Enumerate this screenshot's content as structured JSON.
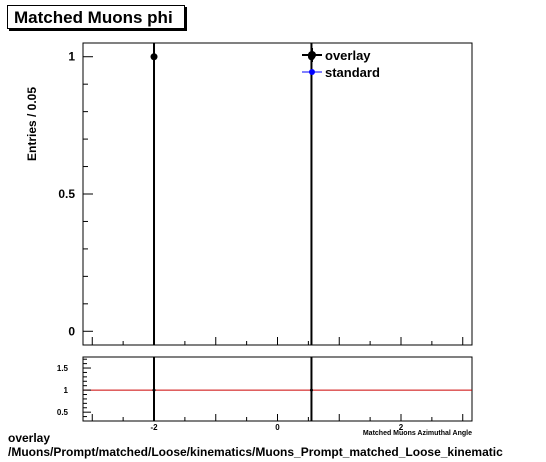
{
  "title": "Matched Muons phi",
  "footer": {
    "line1": "overlay",
    "line2": "/Muons/Prompt/matched/Loose/kinematics/Muons_Prompt_matched_Loose_kinematic"
  },
  "colors": {
    "overlay": "#000000",
    "standard": "#0000ff",
    "ratio_line": "#cc0000",
    "frame": "#000000"
  },
  "chart_data": [
    {
      "type": "scatter",
      "panel": "main",
      "title": "Matched Muons phi",
      "ylabel": "Entries / 0.05",
      "xlim": [
        -3.15,
        3.15
      ],
      "ylim": [
        -0.05,
        1.05
      ],
      "ytick_labels": [
        {
          "value": 0,
          "label": "0"
        },
        {
          "value": 0.5,
          "label": "0.5"
        },
        {
          "value": 1,
          "label": "1"
        }
      ],
      "grid": false,
      "legend_position": "top-right",
      "legend": [
        {
          "name": "overlay",
          "color": "#000000",
          "marker": "filled-circle"
        },
        {
          "name": "standard",
          "color": "#0000ff",
          "marker": "filled-circle"
        }
      ],
      "series": [
        {
          "name": "overlay",
          "points": [
            {
              "x": -2.0,
              "y": 1
            },
            {
              "x": 0.55,
              "y": 1
            }
          ]
        }
      ]
    },
    {
      "type": "line",
      "panel": "ratio",
      "xlabel": "Matched Muons Azimuthal Angle",
      "xlim": [
        -3.15,
        3.15
      ],
      "ylim": [
        0.3,
        1.75
      ],
      "ytick_labels": [
        {
          "value": 0.5,
          "label": "0.5"
        },
        {
          "value": 1,
          "label": "1"
        },
        {
          "value": 1.5,
          "label": "1.5"
        }
      ],
      "xtick_labels": [
        {
          "value": -2,
          "label": "-2"
        },
        {
          "value": 0,
          "label": "0"
        },
        {
          "value": 2,
          "label": "2"
        }
      ],
      "reference_line": 1,
      "grid": false,
      "points": [
        {
          "x": -2.0,
          "y": 1
        },
        {
          "x": 0.55,
          "y": 1
        }
      ]
    }
  ]
}
